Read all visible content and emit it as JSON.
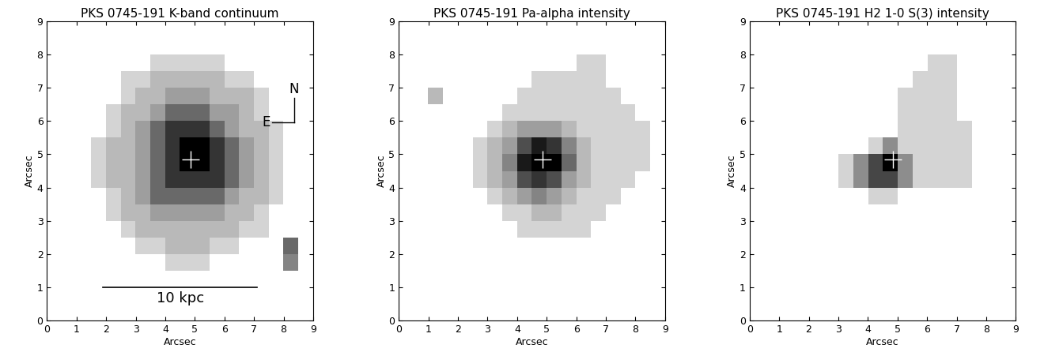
{
  "chart_data": [
    {
      "type": "heatmap",
      "title": "PKS 0745-191 K-band continuum",
      "x_label": "Arcsec",
      "y_label": "Arcsec",
      "xlim": [
        0,
        9
      ],
      "ylim": [
        0,
        9
      ],
      "xticks": [
        0,
        1,
        2,
        3,
        4,
        5,
        6,
        7,
        8,
        9
      ],
      "yticks": [
        0,
        1,
        2,
        3,
        4,
        5,
        6,
        7,
        8,
        9
      ],
      "nucleus": {
        "x": 4.85,
        "y": 4.85
      },
      "scale_bar": {
        "x": [
          1.9,
          7.1
        ],
        "y": 1.0,
        "label": "10 kpc"
      },
      "compass": {
        "x": 8.35,
        "y": 5.95,
        "length": 0.75,
        "labels": [
          "N",
          "E"
        ]
      },
      "cells": [
        [
          null,
          null,
          null,
          null,
          null,
          null,
          null,
          null,
          null,
          null,
          null,
          null,
          null,
          null,
          null,
          null,
          null,
          null
        ],
        [
          null,
          null,
          null,
          null,
          null,
          null,
          null,
          null,
          null,
          null,
          null,
          null,
          null,
          null,
          null,
          null,
          null,
          null
        ],
        [
          null,
          null,
          null,
          null,
          null,
          null,
          null,
          null,
          null,
          null,
          null,
          null,
          null,
          null,
          null,
          null,
          null,
          null
        ],
        [
          null,
          null,
          null,
          null,
          null,
          null,
          null,
          null,
          1,
          1,
          1,
          null,
          null,
          null,
          null,
          null,
          4,
          null
        ],
        [
          null,
          null,
          null,
          null,
          null,
          null,
          1,
          1,
          2,
          2,
          2,
          1,
          1,
          null,
          null,
          null,
          5,
          null
        ],
        [
          null,
          null,
          null,
          null,
          null,
          1,
          2,
          2,
          2,
          2,
          2,
          2,
          2,
          1,
          1,
          null,
          null,
          null
        ],
        [
          null,
          null,
          null,
          null,
          1,
          2,
          2,
          3,
          3,
          3,
          3,
          3,
          2,
          2,
          1,
          null,
          null,
          null
        ],
        [
          null,
          null,
          null,
          null,
          1,
          2,
          3,
          5,
          5,
          5,
          5,
          5,
          3,
          2,
          2,
          1,
          null,
          null
        ],
        [
          null,
          null,
          null,
          1,
          2,
          2,
          3,
          5,
          7,
          7,
          7,
          7,
          5,
          3,
          2,
          1,
          null,
          null
        ],
        [
          null,
          null,
          null,
          1,
          2,
          2,
          3,
          5,
          7,
          9,
          9,
          7,
          5,
          3,
          2,
          1,
          null,
          null
        ],
        [
          null,
          null,
          null,
          1,
          2,
          2,
          3,
          5,
          7,
          9,
          9,
          7,
          5,
          3,
          2,
          1,
          null,
          null
        ],
        [
          null,
          null,
          null,
          null,
          1,
          2,
          3,
          5,
          7,
          7,
          7,
          5,
          3,
          2,
          2,
          1,
          null,
          null
        ],
        [
          null,
          null,
          null,
          null,
          1,
          2,
          2,
          3,
          5,
          5,
          5,
          3,
          3,
          2,
          1,
          null,
          null,
          null
        ],
        [
          null,
          null,
          null,
          null,
          null,
          1,
          2,
          2,
          3,
          3,
          3,
          2,
          2,
          2,
          1,
          null,
          null,
          null
        ],
        [
          null,
          null,
          null,
          null,
          null,
          1,
          1,
          2,
          2,
          2,
          2,
          2,
          1,
          1,
          null,
          null,
          null,
          null
        ],
        [
          null,
          null,
          null,
          null,
          null,
          null,
          null,
          1,
          1,
          1,
          1,
          1,
          null,
          null,
          null,
          null,
          null,
          null
        ],
        [
          null,
          null,
          null,
          null,
          null,
          null,
          null,
          null,
          null,
          null,
          null,
          null,
          null,
          null,
          null,
          null,
          null,
          null
        ],
        [
          null,
          null,
          null,
          null,
          null,
          null,
          null,
          null,
          null,
          null,
          null,
          null,
          null,
          null,
          null,
          null,
          null,
          null
        ]
      ]
    },
    {
      "type": "heatmap",
      "title": "PKS 0745-191 Pa-alpha intensity",
      "x_label": "Arcsec",
      "y_label": "Arcsec",
      "xlim": [
        0,
        9
      ],
      "ylim": [
        0,
        9
      ],
      "xticks": [
        0,
        1,
        2,
        3,
        4,
        5,
        6,
        7,
        8,
        9
      ],
      "yticks": [
        0,
        1,
        2,
        3,
        4,
        5,
        6,
        7,
        8,
        9
      ],
      "nucleus": {
        "x": 4.85,
        "y": 4.85
      },
      "cells": [
        [
          null,
          null,
          null,
          null,
          null,
          null,
          null,
          null,
          null,
          null,
          null,
          null,
          null,
          null,
          null,
          null,
          null,
          null
        ],
        [
          null,
          null,
          null,
          null,
          null,
          null,
          null,
          null,
          null,
          null,
          null,
          null,
          null,
          null,
          null,
          null,
          null,
          null
        ],
        [
          null,
          null,
          null,
          null,
          null,
          null,
          null,
          null,
          null,
          null,
          null,
          null,
          null,
          null,
          null,
          null,
          null,
          null
        ],
        [
          null,
          null,
          null,
          null,
          null,
          null,
          null,
          null,
          null,
          null,
          null,
          null,
          null,
          null,
          null,
          null,
          null,
          null
        ],
        [
          null,
          null,
          null,
          null,
          null,
          null,
          null,
          null,
          null,
          null,
          null,
          null,
          null,
          null,
          null,
          null,
          null,
          null
        ],
        [
          null,
          null,
          null,
          null,
          null,
          null,
          null,
          null,
          1,
          1,
          1,
          1,
          1,
          null,
          null,
          null,
          null,
          null
        ],
        [
          null,
          null,
          null,
          null,
          null,
          null,
          null,
          1,
          1,
          2,
          2,
          1,
          1,
          1,
          null,
          null,
          null,
          null
        ],
        [
          null,
          null,
          null,
          null,
          null,
          null,
          1,
          2,
          3,
          4,
          3,
          2,
          1,
          1,
          1,
          null,
          null,
          null
        ],
        [
          null,
          null,
          null,
          null,
          null,
          1,
          2,
          3,
          6,
          7,
          6,
          3,
          2,
          1,
          1,
          1,
          null,
          null
        ],
        [
          null,
          null,
          null,
          null,
          null,
          1,
          2,
          4,
          8,
          9,
          9,
          5,
          2,
          1,
          1,
          1,
          1,
          null
        ],
        [
          null,
          null,
          null,
          null,
          null,
          1,
          2,
          3,
          6,
          8,
          7,
          4,
          2,
          1,
          1,
          1,
          1,
          null
        ],
        [
          null,
          null,
          null,
          null,
          null,
          null,
          1,
          2,
          3,
          3,
          3,
          2,
          1,
          1,
          1,
          1,
          1,
          null
        ],
        [
          null,
          null,
          null,
          null,
          null,
          null,
          null,
          1,
          1,
          1,
          1,
          1,
          1,
          1,
          1,
          1,
          null,
          null
        ],
        [
          null,
          null,
          2,
          null,
          null,
          null,
          null,
          null,
          1,
          1,
          1,
          1,
          1,
          1,
          1,
          null,
          null,
          null
        ],
        [
          null,
          null,
          null,
          null,
          null,
          null,
          null,
          null,
          null,
          1,
          1,
          1,
          1,
          1,
          null,
          null,
          null,
          null
        ],
        [
          null,
          null,
          null,
          null,
          null,
          null,
          null,
          null,
          null,
          null,
          null,
          null,
          1,
          1,
          null,
          null,
          null,
          null
        ],
        [
          null,
          null,
          null,
          null,
          null,
          null,
          null,
          null,
          null,
          null,
          null,
          null,
          null,
          null,
          null,
          null,
          null,
          null
        ],
        [
          null,
          null,
          null,
          null,
          null,
          null,
          null,
          null,
          null,
          null,
          null,
          null,
          null,
          null,
          null,
          null,
          null,
          null
        ]
      ]
    },
    {
      "type": "heatmap",
      "title": "PKS 0745-191 H2 1-0 S(3) intensity",
      "x_label": "Arcsec",
      "y_label": "Arcsec",
      "xlim": [
        0,
        9
      ],
      "ylim": [
        0,
        9
      ],
      "xticks": [
        0,
        1,
        2,
        3,
        4,
        5,
        6,
        7,
        8,
        9
      ],
      "yticks": [
        0,
        1,
        2,
        3,
        4,
        5,
        6,
        7,
        8,
        9
      ],
      "nucleus": {
        "x": 4.85,
        "y": 4.85
      },
      "cells": [
        [
          null,
          null,
          null,
          null,
          null,
          null,
          null,
          null,
          null,
          null,
          null,
          null,
          null,
          null,
          null,
          null,
          null,
          null
        ],
        [
          null,
          null,
          null,
          null,
          null,
          null,
          null,
          null,
          null,
          null,
          null,
          null,
          null,
          null,
          null,
          null,
          null,
          null
        ],
        [
          null,
          null,
          null,
          null,
          null,
          null,
          null,
          null,
          null,
          null,
          null,
          null,
          null,
          null,
          null,
          null,
          null,
          null
        ],
        [
          null,
          null,
          null,
          null,
          null,
          null,
          null,
          null,
          null,
          null,
          null,
          null,
          null,
          null,
          null,
          null,
          null,
          null
        ],
        [
          null,
          null,
          null,
          null,
          null,
          null,
          null,
          null,
          null,
          null,
          null,
          null,
          null,
          null,
          null,
          null,
          null,
          null
        ],
        [
          null,
          null,
          null,
          null,
          null,
          null,
          null,
          null,
          null,
          null,
          null,
          null,
          null,
          null,
          null,
          null,
          null,
          null
        ],
        [
          null,
          null,
          null,
          null,
          null,
          null,
          null,
          null,
          null,
          null,
          null,
          null,
          null,
          null,
          null,
          null,
          null,
          null
        ],
        [
          null,
          null,
          null,
          null,
          null,
          null,
          null,
          null,
          1,
          1,
          null,
          null,
          null,
          null,
          null,
          null,
          null,
          null
        ],
        [
          null,
          null,
          null,
          null,
          null,
          null,
          1,
          2,
          3,
          3,
          2,
          1,
          1,
          1,
          1,
          null,
          null,
          null
        ],
        [
          null,
          null,
          null,
          null,
          null,
          null,
          1,
          2,
          3,
          4,
          2,
          1,
          1,
          1,
          1,
          null,
          null,
          null
        ],
        [
          null,
          null,
          null,
          null,
          null,
          null,
          null,
          null,
          1,
          2,
          1,
          1,
          1,
          1,
          1,
          null,
          null,
          null
        ],
        [
          null,
          null,
          null,
          null,
          null,
          null,
          null,
          null,
          null,
          null,
          1,
          1,
          1,
          1,
          1,
          null,
          null,
          null
        ],
        [
          null,
          null,
          null,
          null,
          null,
          null,
          null,
          null,
          null,
          null,
          1,
          1,
          1,
          1,
          null,
          null,
          null,
          null
        ],
        [
          null,
          null,
          null,
          null,
          null,
          null,
          null,
          null,
          null,
          null,
          1,
          1,
          1,
          1,
          null,
          null,
          null,
          null
        ],
        [
          null,
          null,
          null,
          null,
          null,
          null,
          null,
          null,
          null,
          null,
          null,
          1,
          1,
          1,
          null,
          null,
          null,
          null
        ],
        [
          null,
          null,
          null,
          null,
          null,
          null,
          null,
          null,
          null,
          null,
          null,
          null,
          1,
          1,
          null,
          null,
          null,
          null
        ],
        [
          null,
          null,
          null,
          null,
          null,
          null,
          null,
          null,
          null,
          null,
          null,
          null,
          null,
          null,
          null,
          null,
          null,
          null
        ],
        [
          null,
          null,
          null,
          null,
          null,
          null,
          null,
          null,
          null,
          null,
          null,
          null,
          null,
          null,
          null,
          null,
          null,
          null
        ]
      ]
    }
  ]
}
